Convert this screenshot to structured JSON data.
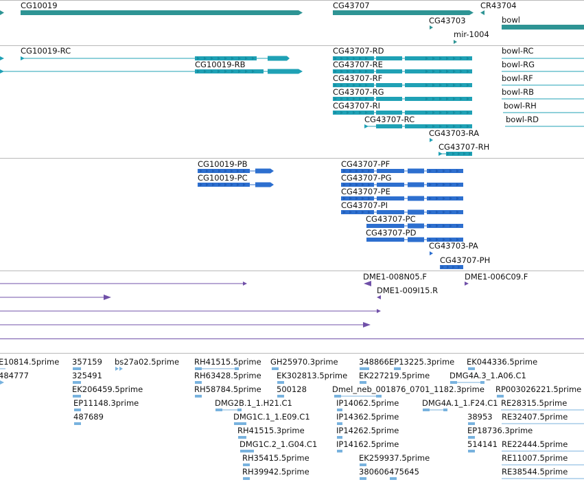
{
  "colors": {
    "gene": "#2e9494",
    "rna": "#1fa1b5",
    "protein": "#2d6fcf",
    "clone": "#7050a8",
    "est": "#78b2de",
    "divider": "#b8b8b8"
  },
  "genes": [
    {
      "label": "CG10019"
    },
    {
      "label": "CG43707"
    },
    {
      "label": "CR43704"
    },
    {
      "label": "CG43703"
    },
    {
      "label": "mir-1004"
    },
    {
      "label": "bowl"
    }
  ],
  "transcripts": [
    {
      "label": "CG10019-RC"
    },
    {
      "label": "CG10019-RB"
    },
    {
      "label": "CG43707-RD"
    },
    {
      "label": "CG43707-RE"
    },
    {
      "label": "CG43707-RF"
    },
    {
      "label": "CG43707-RG"
    },
    {
      "label": "CG43707-RI"
    },
    {
      "label": "CG43707-RC"
    },
    {
      "label": "CG43703-RA"
    },
    {
      "label": "CG43707-RH"
    },
    {
      "label": "bowl-RC"
    },
    {
      "label": "bowl-RG"
    },
    {
      "label": "bowl-RF"
    },
    {
      "label": "bowl-RB"
    },
    {
      "label": "bowl-RH"
    },
    {
      "label": "bowl-RD"
    }
  ],
  "proteins": [
    {
      "label": "CG10019-PB"
    },
    {
      "label": "CG10019-PC"
    },
    {
      "label": "CG43707-PF"
    },
    {
      "label": "CG43707-PG"
    },
    {
      "label": "CG43707-PE"
    },
    {
      "label": "CG43707-PI"
    },
    {
      "label": "CG43707-PC"
    },
    {
      "label": "CG43707-PD"
    },
    {
      "label": "CG43703-PA"
    },
    {
      "label": "CG43707-PH"
    }
  ],
  "clones": [
    {
      "label": "DME1-008N05.F"
    },
    {
      "label": "DME1-006C09.F"
    },
    {
      "label": "DME1-009I15.R"
    }
  ],
  "ests": [
    {
      "label": "E10814.5prime"
    },
    {
      "label": "357159"
    },
    {
      "label": "bs27a02.5prime"
    },
    {
      "label": "RH41515.5prime"
    },
    {
      "label": "GH25970.3prime"
    },
    {
      "label": "348866"
    },
    {
      "label": "EP13225.3prime"
    },
    {
      "label": "EK044336.5prime"
    },
    {
      "label": "484777"
    },
    {
      "label": "325491"
    },
    {
      "label": "RH63428.5prime"
    },
    {
      "label": "EK302813.5prime"
    },
    {
      "label": "EK227219.5prime"
    },
    {
      "label": "DMG4A.3_1.A06.C1"
    },
    {
      "label": "EK206459.5prime"
    },
    {
      "label": "RH58784.5prime"
    },
    {
      "label": "500128"
    },
    {
      "label": "Dmel_neb_001876_0701_1182.3prime"
    },
    {
      "label": "RP003026221.5prime"
    },
    {
      "label": "EP11148.3prime"
    },
    {
      "label": "DMG2B.1_1.H21.C1"
    },
    {
      "label": "IP14062.5prime"
    },
    {
      "label": "DMG4A.1_1.F24.C1"
    },
    {
      "label": "RE28315.5prime"
    },
    {
      "label": "487689"
    },
    {
      "label": "DMG1C.1_1.E09.C1"
    },
    {
      "label": "IP14362.5prime"
    },
    {
      "label": "38953"
    },
    {
      "label": "RE32407.5prime"
    },
    {
      "label": "RH41515.3prime"
    },
    {
      "label": "IP14262.5prime"
    },
    {
      "label": "EP18736.3prime"
    },
    {
      "label": "DMG1C.2_1.G04.C1"
    },
    {
      "label": "IP14162.5prime"
    },
    {
      "label": "514141"
    },
    {
      "label": "RE22444.5prime"
    },
    {
      "label": "RH35415.5prime"
    },
    {
      "label": "EK259937.5prime"
    },
    {
      "label": "RE11007.5prime"
    },
    {
      "label": "RH39942.5prime"
    },
    {
      "label": "380606"
    },
    {
      "label": "475645"
    },
    {
      "label": "RE38544.5prime"
    }
  ]
}
